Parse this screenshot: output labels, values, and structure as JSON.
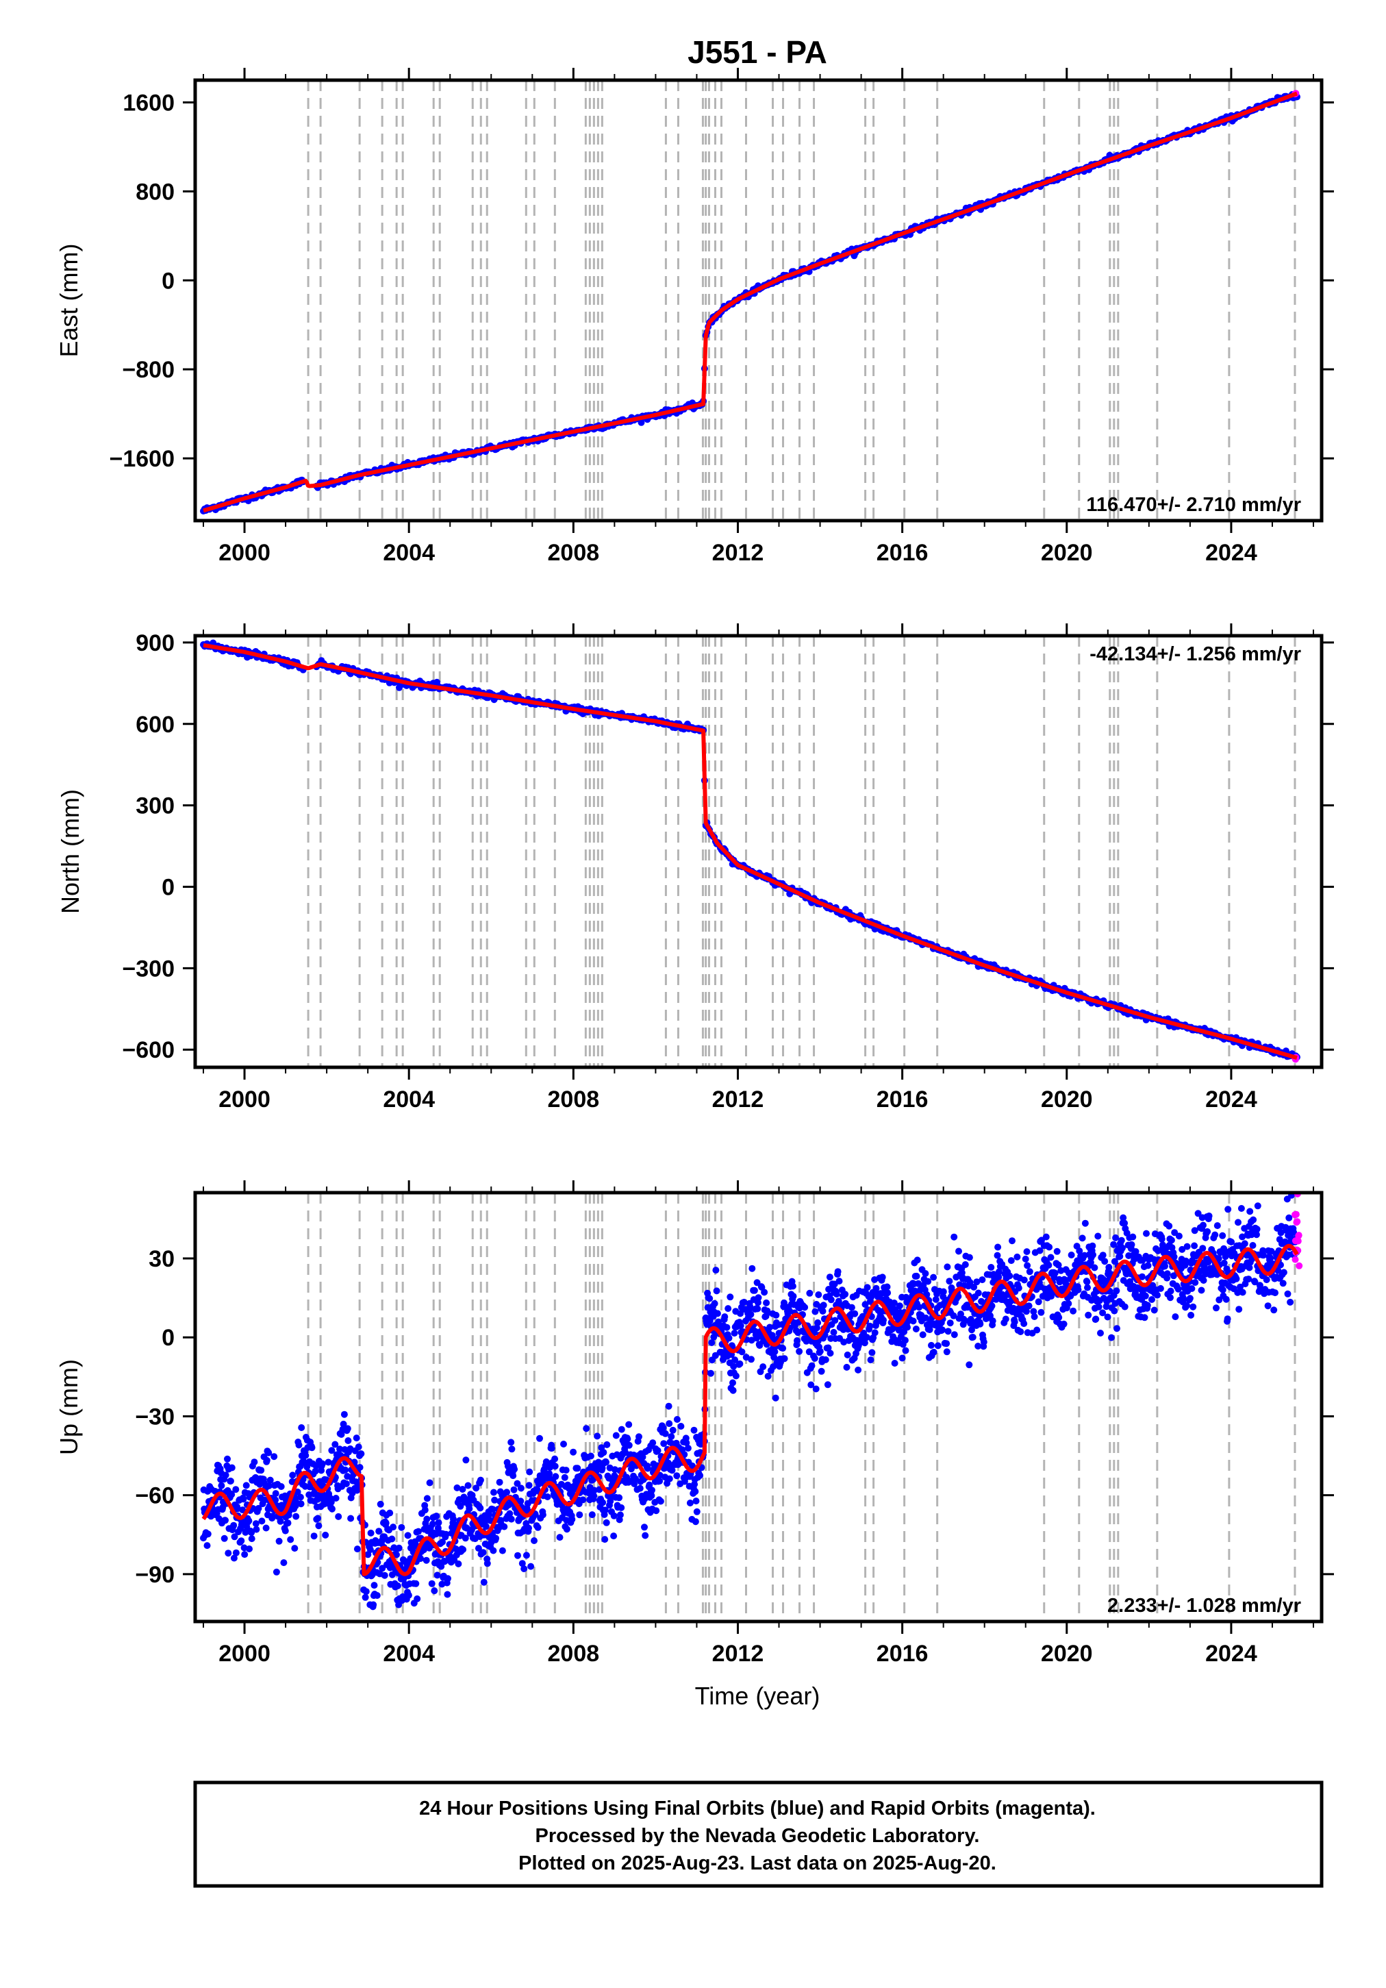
{
  "title": "J551 - PA",
  "xlabel": "Time (year)",
  "x_ticks": [
    2000,
    2004,
    2008,
    2012,
    2016,
    2020,
    2024
  ],
  "event_lines": [
    2001.55,
    2001.85,
    2002.8,
    2003.35,
    2003.7,
    2003.85,
    2004.6,
    2004.75,
    2005.55,
    2005.75,
    2005.9,
    2006.85,
    2007.05,
    2007.55,
    2008.3,
    2008.4,
    2008.5,
    2008.6,
    2008.7,
    2010.25,
    2010.55,
    2011.15,
    2011.22,
    2011.3,
    2011.45,
    2011.6,
    2012.2,
    2012.85,
    2013.1,
    2013.5,
    2013.85,
    2015.1,
    2015.3,
    2016.05,
    2016.85,
    2019.45,
    2020.3,
    2021.05,
    2021.15,
    2021.25,
    2022.2,
    2023.95,
    2025.55
  ],
  "colors": {
    "final_orbits": "#0000ff",
    "rapid_orbits": "#ff00ff",
    "model": "#ff0000",
    "event_line": "#b4b4b4"
  },
  "footer": {
    "line1": "24 Hour Positions Using Final Orbits (blue) and Rapid Orbits (magenta).",
    "line2": "Processed by the Nevada Geodetic Laboratory.",
    "line3": "Plotted on 2025-Aug-23. Last data on 2025-Aug-20."
  },
  "chart_data": [
    {
      "type": "scatter",
      "ylabel": "East (mm)",
      "rate": "116.470+/- 2.710 mm/yr",
      "xlim": [
        1998.8,
        2026.2
      ],
      "ylim": [
        -2160,
        1800
      ],
      "y_ticks": [
        -1600,
        -800,
        0,
        800,
        1600
      ],
      "series": [
        {
          "x": [
            1999.0,
            2000.0,
            2001.0,
            2001.5,
            2001.55,
            2001.85,
            2002.8,
            2004.0,
            2006.0,
            2008.0,
            2010.0,
            2011.18,
            2011.2,
            2011.3,
            2011.6,
            2012.0,
            2013.0,
            2014.0,
            2016.0,
            2018.0,
            2020.0,
            2022.0,
            2024.0,
            2025.6
          ],
          "y": [
            -2070,
            -1960,
            -1860,
            -1800,
            -1850,
            -1840,
            -1750,
            -1660,
            -1510,
            -1360,
            -1210,
            -1110,
            -530,
            -380,
            -270,
            -170,
            10,
            150,
            420,
            680,
            950,
            1210,
            1460,
            1680
          ]
        }
      ]
    },
    {
      "type": "scatter",
      "ylabel": "North (mm)",
      "rate": "-42.134+/- 1.256 mm/yr",
      "xlim": [
        1998.8,
        2026.2
      ],
      "ylim": [
        -665,
        925
      ],
      "y_ticks": [
        -600,
        -300,
        0,
        300,
        600,
        900
      ],
      "series": [
        {
          "x": [
            1999.0,
            2000.0,
            2001.0,
            2001.55,
            2001.85,
            2002.5,
            2004.0,
            2006.0,
            2008.0,
            2010.0,
            2011.18,
            2011.2,
            2011.5,
            2012.0,
            2014.0,
            2016.0,
            2018.0,
            2020.0,
            2022.0,
            2024.0,
            2025.6
          ],
          "y": [
            890,
            865,
            830,
            805,
            820,
            800,
            750,
            705,
            655,
            610,
            575,
            240,
            160,
            80,
            -60,
            -180,
            -290,
            -390,
            -480,
            -560,
            -630
          ]
        }
      ]
    },
    {
      "type": "scatter",
      "ylabel": "Up (mm)",
      "rate": "2.233+/- 1.028 mm/yr",
      "xlim": [
        1998.8,
        2026.2
      ],
      "ylim": [
        -108,
        55
      ],
      "y_ticks": [
        -90,
        -60,
        -30,
        0,
        30
      ],
      "series": [
        {
          "x": [
            1999.0,
            2001.0,
            2001.55,
            2002.6,
            2002.85,
            2002.9,
            2004.0,
            2005.5,
            2007.0,
            2008.5,
            2010.0,
            2011.2,
            2011.22,
            2012.0,
            2014.0,
            2016.0,
            2018.0,
            2020.0,
            2022.0,
            2024.0,
            2025.6
          ],
          "y": [
            -65,
            -62,
            -55,
            -50,
            -48,
            -85,
            -85,
            -72,
            -62,
            -56,
            -48,
            -45,
            -2,
            0,
            5,
            10,
            15,
            21,
            25,
            28,
            30
          ]
        }
      ]
    }
  ]
}
